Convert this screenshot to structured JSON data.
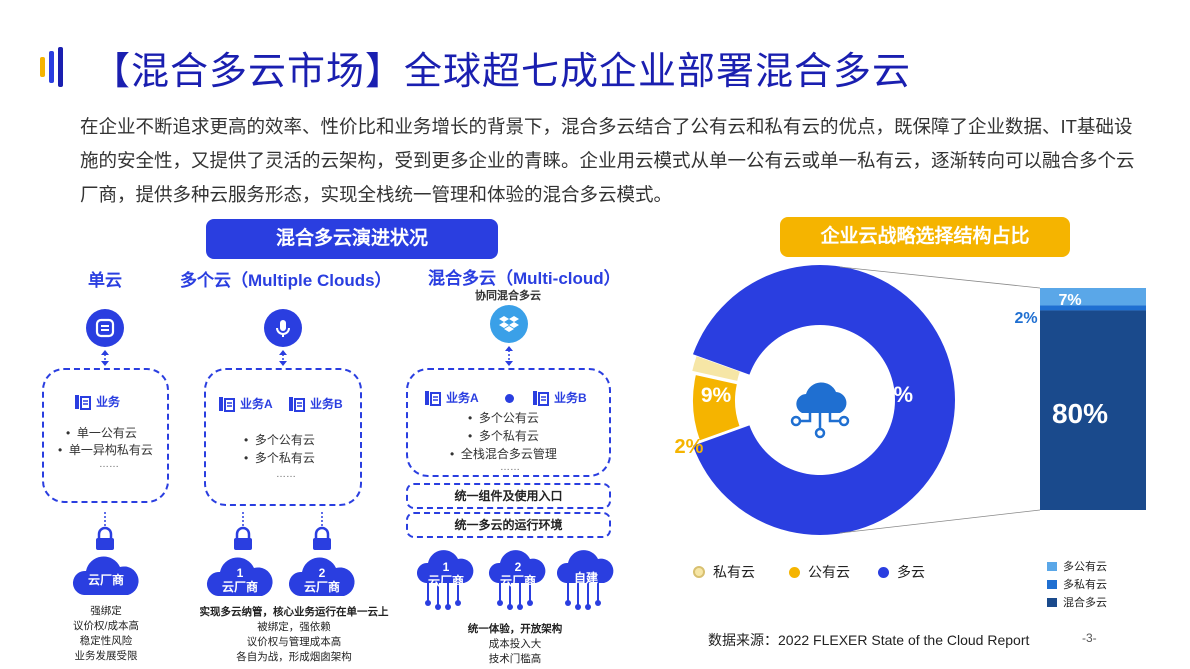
{
  "header": {
    "title": "【混合多云市场】全球超七成企业部署混合多云"
  },
  "intro": "在企业不断追求更高的效率、性价比和业务增长的背景下，混合多云结合了公有云和私有云的优点，既保障了企业数据、IT基础设施的安全性，又提供了灵活的云架构，受到更多企业的青睐。企业用云模式从单一公有云或单一私有云，逐渐转向可以融合多个云厂商，提供多种云服务形态，实现全栈统一管理和体验的混合多云模式。",
  "evolution": {
    "title": "混合多云演进状况",
    "col1": {
      "heading": "单云",
      "service": "业务",
      "bullets": [
        "单一公有云",
        "单一异构私有云"
      ],
      "more": "……",
      "vendor": "云厂商",
      "notes": [
        "强绑定",
        "议价权/成本高",
        "稳定性风险",
        "业务发展受限"
      ]
    },
    "col2": {
      "heading": "多个云（Multiple Clouds）",
      "service_a": "业务A",
      "service_b": "业务B",
      "bullets": [
        "多个公有云",
        "多个私有云"
      ],
      "more": "……",
      "vendors": [
        {
          "num": "1",
          "name": "云厂商"
        },
        {
          "num": "2",
          "name": "云厂商"
        }
      ],
      "note_bold": "实现多云纳管，核心业务运行在单一云上",
      "notes": [
        "被绑定，强依赖",
        "议价权与管理成本高",
        "各自为战，形成烟囱架构"
      ]
    },
    "col3": {
      "heading": "混合多云（Multi-cloud）",
      "sub": "协同混合多云",
      "service_a": "业务A",
      "service_b": "业务B",
      "bullets": [
        "多个公有云",
        "多个私有云",
        "全栈混合多云管理"
      ],
      "more": "……",
      "bar1": "统一组件及使用入口",
      "bar2": "统一多云的运行环境",
      "vendors": [
        {
          "num": "1",
          "name": "云厂商"
        },
        {
          "num": "2",
          "name": "云厂商"
        },
        {
          "num": "",
          "name": "自建"
        }
      ],
      "note_bold": "统一体验，开放架构",
      "notes": [
        "成本投入大",
        "技术门槛高"
      ]
    }
  },
  "strategy": {
    "title": "企业云战略选择结构占比",
    "labels": {
      "multi": "89%",
      "public": "9%",
      "private": "2%",
      "bar_top": "7%",
      "bar_mid": "2%",
      "bar_main": "80%"
    },
    "legend": [
      "私有云",
      "公有云",
      "多云"
    ],
    "bar_legend": [
      "多公有云",
      "多私有云",
      "混合多云"
    ],
    "colors": {
      "multi": "#2a3ee0",
      "public": "#f5b400",
      "private": "#f6e6a6",
      "bar_top": "#5aa7e8",
      "bar_mid": "#1f6fd1",
      "bar_main": "#1a4a8c"
    }
  },
  "chart_data": {
    "type": "pie",
    "categories": [
      "多云",
      "公有云",
      "私有云"
    ],
    "values": [
      89,
      9,
      2
    ],
    "breakdown": {
      "parent": "多云",
      "categories": [
        "多公有云",
        "多私有云",
        "混合多云"
      ],
      "values": [
        7,
        2,
        80
      ]
    }
  },
  "footer": {
    "source": "数据来源：2022 FLEXER  State of the Cloud Report",
    "page": "-3-"
  }
}
